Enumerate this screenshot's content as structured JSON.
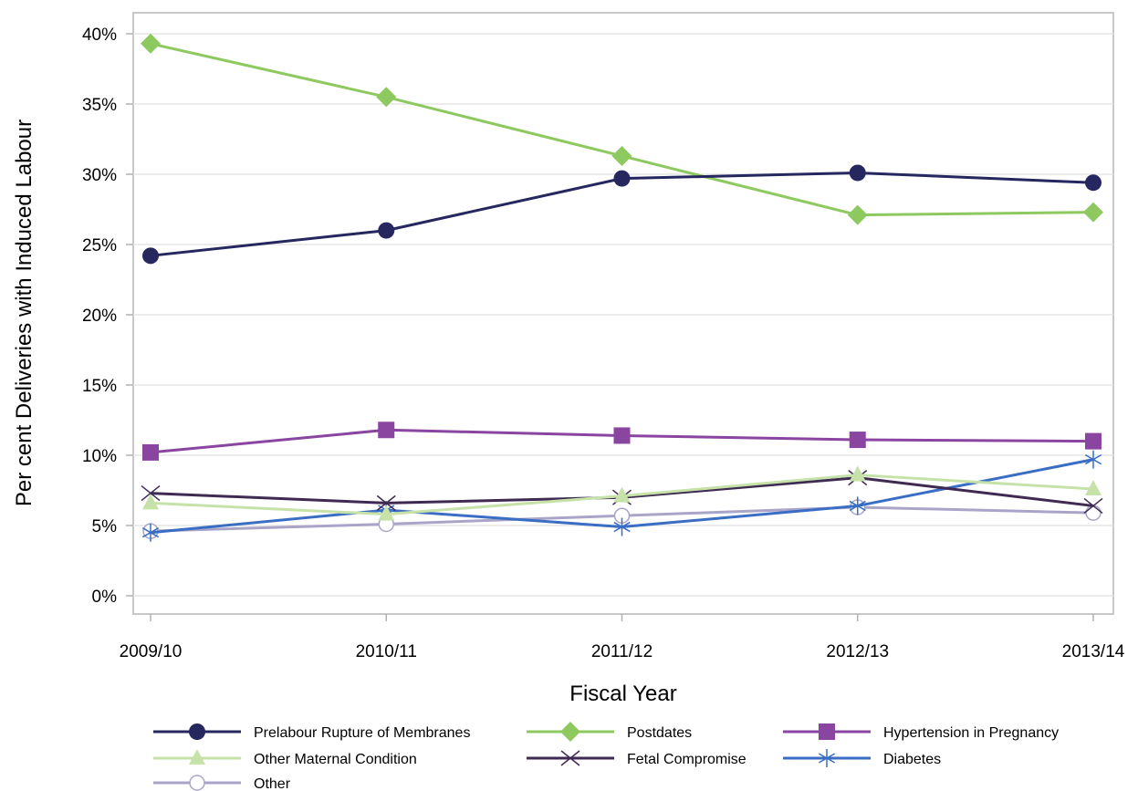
{
  "chart_data": {
    "type": "line",
    "title": "",
    "xlabel": "Fiscal Year",
    "ylabel": "Per cent Deliveries with Induced Labour",
    "categories": [
      "2009/10",
      "2010/11",
      "2011/12",
      "2012/13",
      "2013/14"
    ],
    "ylim": [
      0,
      40
    ],
    "yticks": [
      0,
      5,
      10,
      15,
      20,
      25,
      30,
      35,
      40
    ],
    "ytick_labels": [
      "0%",
      "5%",
      "10%",
      "15%",
      "20%",
      "25%",
      "30%",
      "35%",
      "40%"
    ],
    "grid": "horizontal",
    "legend_position": "bottom",
    "series": [
      {
        "name": "Prelabour Rupture of Membranes",
        "values": [
          24.2,
          26.0,
          29.7,
          30.1,
          29.4
        ],
        "color": "#26275f",
        "marker": "circle-filled"
      },
      {
        "name": "Postdates",
        "values": [
          39.3,
          35.5,
          31.3,
          27.1,
          27.3
        ],
        "color": "#8dc95f",
        "marker": "diamond-filled"
      },
      {
        "name": "Hypertension in Pregnancy",
        "values": [
          10.2,
          11.8,
          11.4,
          11.1,
          11.0
        ],
        "color": "#8a45a0",
        "marker": "square-filled"
      },
      {
        "name": "Other Maternal Condition",
        "values": [
          6.6,
          5.8,
          7.1,
          8.6,
          7.6
        ],
        "color": "#c6e2a9",
        "marker": "triangle-filled"
      },
      {
        "name": "Fetal Compromise",
        "values": [
          7.3,
          6.6,
          7.0,
          8.4,
          6.4
        ],
        "color": "#3f2a52",
        "marker": "x"
      },
      {
        "name": "Diabetes",
        "values": [
          4.5,
          6.1,
          4.9,
          6.4,
          9.7
        ],
        "color": "#3a6ec5",
        "marker": "asterisk"
      },
      {
        "name": "Other",
        "values": [
          4.6,
          5.1,
          5.7,
          6.3,
          5.9
        ],
        "color": "#a9a5c8",
        "marker": "circle-open"
      }
    ]
  }
}
